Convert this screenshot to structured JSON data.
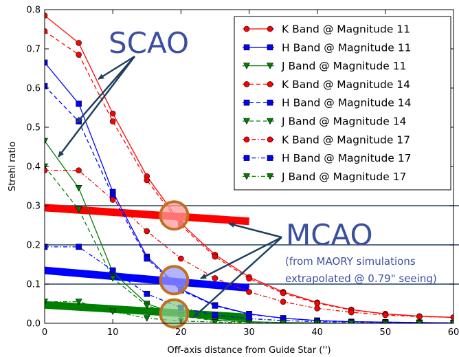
{
  "chart_data": {
    "type": "line",
    "xlabel": "Off-axis distance from Guide Star ('')",
    "ylabel": "Strehl ratio",
    "xlim": [
      0,
      60
    ],
    "ylim": [
      0,
      0.8
    ],
    "xticks": [
      0,
      10,
      20,
      30,
      40,
      50,
      60
    ],
    "yticks": [
      0.0,
      0.1,
      0.2,
      0.3,
      0.4,
      0.5,
      0.6,
      0.7,
      0.8
    ],
    "grid": false,
    "legend_placement": "top-right",
    "series": [
      {
        "name": "K Band @ Magnitude 11",
        "color": "#ff0000",
        "marker": "circle",
        "linestyle": "solid",
        "x": [
          0,
          5,
          10,
          15,
          20,
          25,
          30,
          35,
          40,
          45,
          50,
          55,
          60
        ],
        "y": [
          0.785,
          0.715,
          0.535,
          0.375,
          0.255,
          0.175,
          0.118,
          0.08,
          0.053,
          0.035,
          0.024,
          0.018,
          0.015
        ]
      },
      {
        "name": "H Band @ Magnitude 11",
        "color": "#0000ff",
        "marker": "square",
        "linestyle": "solid",
        "x": [
          0,
          5,
          10,
          15,
          20,
          25,
          30,
          35,
          40,
          45,
          50,
          55,
          60
        ],
        "y": [
          0.665,
          0.56,
          0.335,
          0.17,
          0.087,
          0.046,
          0.024,
          0.013,
          0.007,
          0.004,
          0.003,
          0.002,
          0.001
        ]
      },
      {
        "name": "J Band @ Magnitude 11",
        "color": "#008000",
        "marker": "triangle-down",
        "linestyle": "solid",
        "x": [
          0,
          5,
          10,
          15,
          20,
          25,
          30,
          35,
          40,
          45,
          50,
          55,
          60
        ],
        "y": [
          0.465,
          0.345,
          0.13,
          0.05,
          0.02,
          0.008,
          0.004,
          0.002,
          0.001,
          0.0,
          0.0,
          0.0,
          0.0
        ]
      },
      {
        "name": "K Band @ Magnitude 14",
        "color": "#ff0000",
        "marker": "circle",
        "linestyle": "dashed",
        "x": [
          0,
          5,
          10,
          15,
          20,
          25,
          30,
          35,
          40,
          45,
          50,
          55,
          60
        ],
        "y": [
          0.745,
          0.685,
          0.515,
          0.365,
          0.25,
          0.17,
          0.114,
          0.077,
          0.051,
          0.034,
          0.024,
          0.018,
          0.015
        ]
      },
      {
        "name": "H Band @ Magnitude 14",
        "color": "#0000ff",
        "marker": "square",
        "linestyle": "dashed",
        "x": [
          0,
          5,
          10,
          15,
          20,
          25,
          30,
          35,
          40,
          45,
          50,
          55,
          60
        ],
        "y": [
          0.605,
          0.515,
          0.325,
          0.165,
          0.084,
          0.045,
          0.023,
          0.013,
          0.007,
          0.004,
          0.003,
          0.002,
          0.001
        ]
      },
      {
        "name": "J Band @ Magnitude 14",
        "color": "#008000",
        "marker": "triangle-down",
        "linestyle": "dashed",
        "x": [
          0,
          5,
          10,
          15,
          20,
          25,
          30,
          35,
          40,
          45,
          50,
          55,
          60
        ],
        "y": [
          0.4,
          0.29,
          0.115,
          0.045,
          0.018,
          0.007,
          0.003,
          0.002,
          0.001,
          0.0,
          0.0,
          0.0,
          0.0
        ]
      },
      {
        "name": "K Band @ Magnitude 17",
        "color": "#ff0000",
        "marker": "circle",
        "linestyle": "dashdot",
        "x": [
          0,
          5,
          10,
          15,
          20,
          25,
          30,
          35,
          40,
          45,
          50,
          55,
          60
        ],
        "y": [
          0.39,
          0.39,
          0.315,
          0.235,
          0.165,
          0.115,
          0.08,
          0.055,
          0.038,
          0.028,
          0.021,
          0.017,
          0.015
        ]
      },
      {
        "name": "H Band @ Magnitude 17",
        "color": "#0000ff",
        "marker": "square",
        "linestyle": "dashdot",
        "x": [
          0,
          5,
          10,
          15,
          20,
          25,
          30,
          35,
          40,
          45,
          50,
          55,
          60
        ],
        "y": [
          0.195,
          0.195,
          0.135,
          0.075,
          0.04,
          0.021,
          0.012,
          0.007,
          0.004,
          0.003,
          0.002,
          0.001,
          0.001
        ]
      },
      {
        "name": "J Band @ Magnitude 17",
        "color": "#008000",
        "marker": "triangle-down",
        "linestyle": "dashdot",
        "x": [
          0,
          5,
          10,
          15,
          20,
          25,
          30,
          35,
          40,
          45,
          50,
          55,
          60
        ],
        "y": [
          0.055,
          0.055,
          0.03,
          0.013,
          0.006,
          0.003,
          0.001,
          0.001,
          0.0,
          0.0,
          0.0,
          0.0,
          0.0
        ]
      }
    ],
    "reference_lines": [
      {
        "y": 0.3,
        "color": "#1f3f5f"
      },
      {
        "y": 0.2,
        "color": "#1f3f5f"
      },
      {
        "y": 0.1,
        "color": "#1f3f5f"
      }
    ],
    "mcao_bands": [
      {
        "color": "#ff0000",
        "x": [
          0,
          30
        ],
        "y": [
          0.295,
          0.26
        ]
      },
      {
        "color": "#0000ff",
        "x": [
          0,
          30
        ],
        "y": [
          0.135,
          0.09
        ]
      },
      {
        "color": "#008000",
        "x": [
          0,
          30
        ],
        "y": [
          0.047,
          0.015
        ]
      }
    ],
    "highlight_circles": [
      {
        "x": 19,
        "y": 0.275,
        "fill": "#ff9999"
      },
      {
        "x": 19,
        "y": 0.11,
        "fill": "#9999ff"
      },
      {
        "x": 19,
        "y": 0.025,
        "fill": "#88cc88"
      }
    ],
    "annotations": {
      "scao": {
        "text": "SCAO",
        "color": "#3b4fa0"
      },
      "mcao": {
        "text": "MCAO",
        "color": "#3b4fa0"
      },
      "mcao_note_line1": "(from MAORY simulations",
      "mcao_note_line2": "extrapolated @ 0.79\" seeing)",
      "arrow_color": "#1f3f5f",
      "circle_stroke": "#c07020"
    }
  }
}
